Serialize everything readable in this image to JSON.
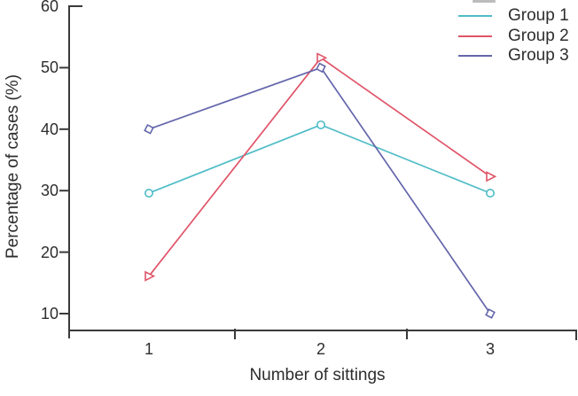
{
  "chart_data": {
    "type": "line",
    "title": "",
    "xlabel": "Number of sittings",
    "ylabel": "Percentage of cases (%)",
    "categories": [
      "1",
      "2",
      "3"
    ],
    "yticks": [
      10,
      20,
      30,
      40,
      50,
      60
    ],
    "ylim": [
      10,
      60
    ],
    "grid": false,
    "legend_position": "top-right",
    "axis_color": "#3a3a3a",
    "text_color": "#2d2d2d",
    "series": [
      {
        "name": "Group 1",
        "color": "#4FBCC7",
        "marker": "circle",
        "values": [
          29.6,
          40.7,
          29.6
        ]
      },
      {
        "name": "Group 2",
        "color": "#E05468",
        "marker": "triangle-right",
        "values": [
          16.1,
          51.6,
          32.3
        ]
      },
      {
        "name": "Group 3",
        "color": "#6466AB",
        "marker": "diamond",
        "values": [
          40.0,
          50.0,
          10.0
        ]
      }
    ]
  }
}
